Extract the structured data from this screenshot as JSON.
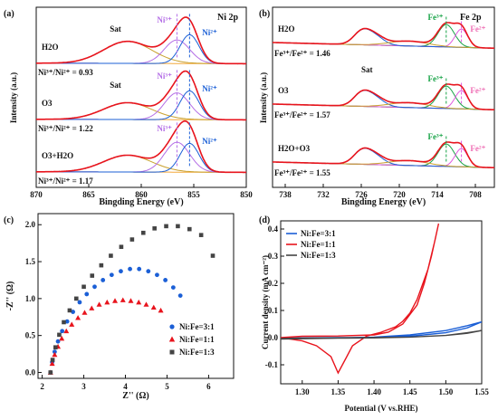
{
  "colors": {
    "red": "#e8141d",
    "blue": "#1b5fd6",
    "green": "#17a346",
    "magenta": "#e05adf",
    "violet": "#b46ee6",
    "orange": "#f4a83a",
    "olive": "#c9a02c",
    "gray": "#444444",
    "black": "#111111",
    "pink": "#ef6fb5"
  },
  "panels": {
    "a": {
      "label": "(a)",
      "xlabel": "Bingding Energy (eV)",
      "ylabel": "Intensity (a.u.)",
      "corner_label": "Ni 2p",
      "traces": [
        {
          "condition": "H2O",
          "ratio_text": "Ni³⁺/Ni²⁺ = 0.93",
          "sat": "Sat",
          "ni3": "Ni³⁺",
          "ni2": "Ni²⁺"
        },
        {
          "condition": "O3",
          "ratio_text": "Ni³⁺/Ni²⁺ = 1.22",
          "sat": "Sat",
          "ni3": "Ni³⁺",
          "ni2": "Ni²⁺"
        },
        {
          "condition": "O3+H2O",
          "ratio_text": "Ni³⁺/Ni²⁺ = 1.17",
          "sat": "",
          "ni3": "Ni³⁺",
          "ni2": "Ni²⁺"
        }
      ]
    },
    "b": {
      "label": "(b)",
      "xlabel": "Bingding Energy (eV)",
      "ylabel": "Intensity (a.u.)",
      "corner_label": "Fe 2p",
      "traces": [
        {
          "condition": "H2O",
          "ratio_text": "Fe³⁺/Fe²⁺ = 1.46",
          "sat": "",
          "fe3": "Fe³⁺",
          "fe2": "Fe²⁺"
        },
        {
          "condition": "O3",
          "ratio_text": "Fe³⁺/Fe²⁺ = 1.57",
          "sat": "Sat",
          "fe3": "Fe³⁺",
          "fe2": "Fe²⁺"
        },
        {
          "condition": "H2O+O3",
          "ratio_text": "Fe³⁺/Fe²⁺ = 1.55",
          "sat": "",
          "fe3": "Fe³⁺",
          "fe2": "Fe²⁺"
        }
      ]
    },
    "c": {
      "label": "(c)"
    },
    "d": {
      "label": "(d)"
    }
  },
  "chart_data": [
    {
      "panel": "(a)",
      "type": "line",
      "title": "",
      "xlabel": "Bingding Energy (eV)",
      "ylabel": "Intensity (a.u.)",
      "xlim": [
        870,
        850
      ],
      "xticks": [
        870,
        865,
        860,
        855,
        850
      ],
      "reversed_x": true,
      "y_units": "arbitrary",
      "peak_positions_eV": {
        "sat": 861.3,
        "ni3": 856.6,
        "ni2": 855.4
      },
      "series": [
        {
          "name": "H2O",
          "ratio_ni3_ni2": 0.93
        },
        {
          "name": "O3",
          "ratio_ni3_ni2": 1.22
        },
        {
          "name": "O3+H2O",
          "ratio_ni3_ni2": 1.17
        }
      ]
    },
    {
      "panel": "(b)",
      "type": "line",
      "title": "",
      "xlabel": "Bingding Energy (eV)",
      "ylabel": "Intensity (a.u.)",
      "xlim": [
        740,
        705
      ],
      "xticks": [
        738,
        732,
        726,
        720,
        714,
        708
      ],
      "reversed_x": true,
      "y_units": "arbitrary",
      "peak_positions_eV": {
        "fe3": 712.6,
        "fe2": 710.2,
        "sat_a": 724.5,
        "sat_b": 726.0
      },
      "series": [
        {
          "name": "H2O",
          "ratio_fe3_fe2": 1.46
        },
        {
          "name": "O3",
          "ratio_fe3_fe2": 1.57
        },
        {
          "name": "H2O+O3",
          "ratio_fe3_fe2": 1.55
        }
      ]
    },
    {
      "panel": "(c)",
      "type": "scatter",
      "title": "",
      "xlabel": "Z'' (Ω)",
      "ylabel": "-Z'' (Ω)",
      "xlim": [
        1.9,
        6.6
      ],
      "ylim": [
        -0.08,
        2.15
      ],
      "xticks": [
        2,
        3,
        4,
        5,
        6
      ],
      "yticks": [
        0.0,
        0.5,
        1.0,
        1.5,
        2.0
      ],
      "legend_position": "bottom-right",
      "series": [
        {
          "name": "Ni:Fe=3:1",
          "color": "#1b5fd6",
          "marker": "circle",
          "x": [
            2.2,
            2.24,
            2.3,
            2.38,
            2.48,
            2.6,
            2.74,
            2.9,
            3.07,
            3.26,
            3.46,
            3.67,
            3.89,
            4.11,
            4.33,
            4.55,
            4.76,
            4.96,
            5.15,
            5.32
          ],
          "y": [
            0.0,
            0.14,
            0.28,
            0.42,
            0.56,
            0.69,
            0.82,
            0.95,
            1.06,
            1.16,
            1.25,
            1.32,
            1.37,
            1.4,
            1.4,
            1.37,
            1.32,
            1.25,
            1.15,
            1.04
          ]
        },
        {
          "name": "Ni:Fe=1:1",
          "color": "#e8141d",
          "marker": "triangle",
          "x": [
            2.2,
            2.24,
            2.3,
            2.38,
            2.47,
            2.58,
            2.71,
            2.86,
            3.02,
            3.19,
            3.37,
            3.56,
            3.75,
            3.94,
            4.13,
            4.32,
            4.5,
            4.68,
            4.85
          ],
          "y": [
            0.0,
            0.12,
            0.24,
            0.35,
            0.46,
            0.56,
            0.65,
            0.74,
            0.81,
            0.87,
            0.92,
            0.95,
            0.97,
            0.98,
            0.97,
            0.95,
            0.92,
            0.88,
            0.84
          ]
        },
        {
          "name": "Ni:Fe=1:3",
          "color": "#444444",
          "marker": "square",
          "x": [
            2.2,
            2.25,
            2.32,
            2.41,
            2.52,
            2.66,
            2.82,
            3.0,
            3.2,
            3.42,
            3.65,
            3.9,
            4.16,
            4.43,
            4.7,
            4.98,
            5.26,
            5.54,
            5.82,
            6.1
          ],
          "y": [
            0.0,
            0.17,
            0.34,
            0.51,
            0.68,
            0.84,
            1.0,
            1.16,
            1.31,
            1.45,
            1.58,
            1.7,
            1.8,
            1.89,
            1.95,
            1.98,
            1.98,
            1.94,
            1.86,
            1.58
          ]
        }
      ]
    },
    {
      "panel": "(d)",
      "type": "line",
      "title": "",
      "xlabel": "Potential (V vs.RHE)",
      "ylabel": "Current density (mA cm⁻²)",
      "xlim": [
        1.27,
        1.55
      ],
      "ylim": [
        -0.17,
        0.43
      ],
      "xticks": [
        1.3,
        1.35,
        1.4,
        1.45,
        1.5,
        1.55
      ],
      "yticks": [
        -0.1,
        0.0,
        0.1,
        0.2,
        0.3,
        0.4
      ],
      "legend_position": "top-left",
      "series": [
        {
          "name": "Ni:Fe=3:1",
          "color": "#1b5fd6",
          "x": [
            1.27,
            1.3,
            1.35,
            1.4,
            1.45,
            1.5,
            1.53,
            1.55,
            1.53,
            1.5,
            1.45,
            1.4,
            1.35,
            1.3,
            1.27
          ],
          "y": [
            -0.002,
            -0.001,
            0.0,
            0.001,
            0.005,
            0.018,
            0.036,
            0.058,
            0.044,
            0.026,
            0.01,
            0.002,
            -0.001,
            -0.003,
            -0.004
          ]
        },
        {
          "name": "Ni:Fe=1:1",
          "color": "#e8141d",
          "x": [
            1.27,
            1.3,
            1.35,
            1.4,
            1.42,
            1.44,
            1.46,
            1.47,
            1.48,
            1.49,
            1.485,
            1.475,
            1.46,
            1.45,
            1.44,
            1.43,
            1.41,
            1.39,
            1.37,
            1.36,
            1.35,
            1.34,
            1.32,
            1.3,
            1.28,
            1.27
          ],
          "y": [
            0.0,
            0.005,
            0.006,
            0.01,
            0.02,
            0.05,
            0.12,
            0.2,
            0.3,
            0.42,
            0.36,
            0.25,
            0.14,
            0.09,
            0.06,
            0.04,
            0.02,
            0.006,
            -0.03,
            -0.08,
            -0.13,
            -0.07,
            -0.03,
            -0.012,
            -0.004,
            -0.002
          ]
        },
        {
          "name": "Ni:Fe=1:3",
          "color": "#444444",
          "x": [
            1.27,
            1.3,
            1.35,
            1.4,
            1.45,
            1.5,
            1.53,
            1.55,
            1.53,
            1.5,
            1.45,
            1.4,
            1.35,
            1.3,
            1.27
          ],
          "y": [
            -0.003,
            -0.002,
            -0.001,
            0.0,
            0.002,
            0.008,
            0.016,
            0.026,
            0.018,
            0.008,
            0.002,
            -0.001,
            -0.002,
            -0.004,
            -0.005
          ]
        }
      ]
    }
  ]
}
